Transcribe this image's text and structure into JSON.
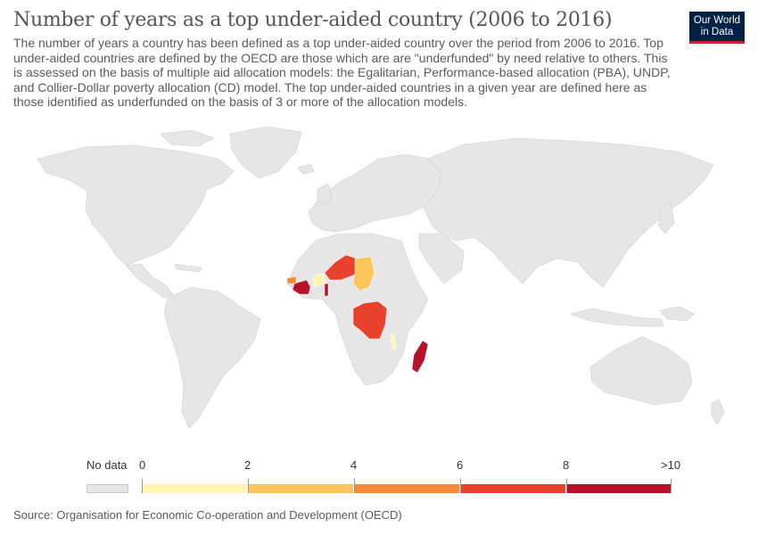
{
  "title": "Number of years as a top under-aided country (2006 to 2016)",
  "subtitle": "The number of years a country has been defined as a top under-aided country over the period from 2006 to 2016. Top under-aided countries are defined by the OECD are those which are are \"underfunded\" by need relative to others. This is assessed on the basis of multiple aid allocation models: the Egalitarian, Performance-based allocation (PBA), UNDP, and Collier-Dollar poverty allocation (CD) model. The top under-aided countries in a given year are defined here as those identified as underfunded on the basis of 3 or more of the allocation models.",
  "logo": {
    "line1": "Our World",
    "line2": "in Data",
    "bg_color": "#002147",
    "accent_color": "#ce261e"
  },
  "legend": {
    "no_data_label": "No data",
    "no_data_color": "#e6e6e6",
    "bins": [
      {
        "from": 0,
        "to": 2,
        "color": "#fef5b3"
      },
      {
        "from": 2,
        "to": 4,
        "color": "#fdc55b"
      },
      {
        "from": 4,
        "to": 6,
        "color": "#f68938"
      },
      {
        "from": 6,
        "to": 8,
        "color": "#e8412d"
      },
      {
        "from": 8,
        "to": 10,
        "color": "#b8112a"
      }
    ],
    "tick_labels": [
      "0",
      "2",
      "4",
      "6",
      "8",
      ">10"
    ]
  },
  "highlighted_countries": [
    {
      "name": "Madagascar",
      "color": "#b8112a"
    },
    {
      "name": "Guinea",
      "color": "#b8112a"
    },
    {
      "name": "Togo",
      "color": "#b8112a"
    },
    {
      "name": "Niger",
      "color": "#e8412d"
    },
    {
      "name": "Democratic Republic of Congo",
      "color": "#e8412d"
    },
    {
      "name": "Guinea-Bissau",
      "color": "#f68938"
    },
    {
      "name": "Chad",
      "color": "#fdc55b"
    },
    {
      "name": "Burkina Faso",
      "color": "#fef5b3"
    },
    {
      "name": "Malawi",
      "color": "#fef5b3"
    }
  ],
  "source": "Source: Organisation for Economic Co-operation and Development (OECD)"
}
